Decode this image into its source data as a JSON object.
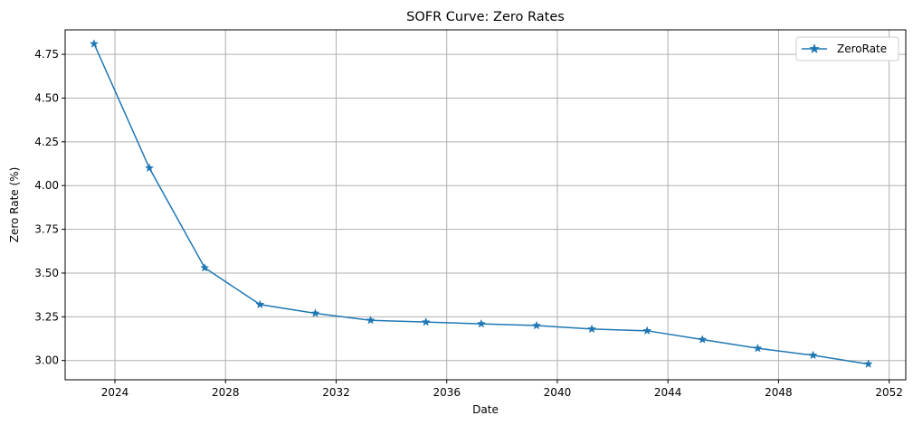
{
  "chart_data": {
    "type": "line",
    "title": "SOFR Curve: Zero Rates",
    "xlabel": "Date",
    "ylabel": "Zero Rate (%)",
    "x_tick_labels": [
      "2024",
      "2028",
      "2032",
      "2036",
      "2040",
      "2044",
      "2048",
      "2052"
    ],
    "y_tick_labels": [
      "3.00",
      "3.25",
      "3.50",
      "3.75",
      "4.00",
      "4.25",
      "4.50",
      "4.75"
    ],
    "x_ticks": [
      2024,
      2028,
      2032,
      2036,
      2040,
      2044,
      2048,
      2052
    ],
    "y_ticks": [
      3.0,
      3.25,
      3.5,
      3.75,
      4.0,
      4.25,
      4.5,
      4.75
    ],
    "xlim": [
      2022.2,
      2052.6
    ],
    "ylim": [
      2.89,
      4.89
    ],
    "grid": true,
    "legend_position": "top-right",
    "series": [
      {
        "name": "ZeroRate",
        "color": "#1f77b4",
        "marker": "star",
        "x": [
          "2023-04-01",
          "2025-04-01",
          "2027-04-01",
          "2029-04-01",
          "2031-04-01",
          "2033-04-01",
          "2035-04-01",
          "2037-04-01",
          "2039-04-01",
          "2041-04-01",
          "2043-04-01",
          "2045-04-01",
          "2047-04-01",
          "2049-04-01",
          "2051-04-01"
        ],
        "y": [
          4.81,
          4.1,
          3.53,
          3.32,
          3.27,
          3.23,
          3.22,
          3.21,
          3.2,
          3.18,
          3.17,
          3.12,
          3.07,
          3.03,
          2.98
        ]
      }
    ]
  }
}
